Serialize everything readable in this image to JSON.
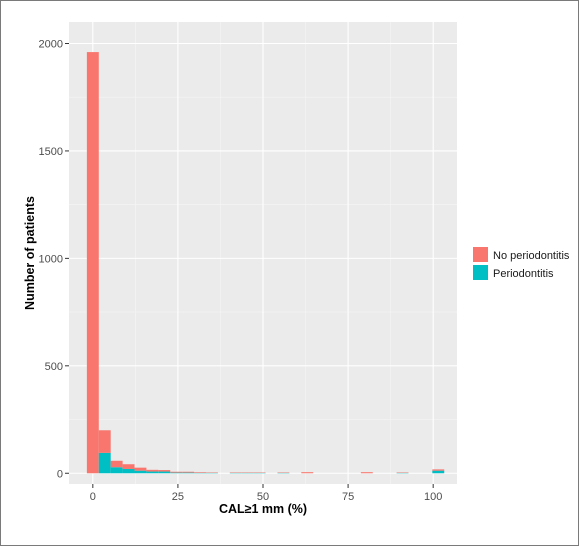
{
  "chart_data": {
    "type": "bar",
    "stacked": true,
    "xlabel": "CAL≥1 mm (%)",
    "ylabel": "Number of patients",
    "xlim": [
      -7,
      107
    ],
    "ylim": [
      -50,
      2100
    ],
    "bin_width": 3.5,
    "x_ticks": [
      0,
      25,
      50,
      75,
      100
    ],
    "y_ticks": [
      0,
      500,
      1000,
      1500,
      2000
    ],
    "grid": true,
    "legend_position": "right",
    "series": [
      {
        "name": "No periodontitis",
        "color": "#F8766D",
        "x": [
          0,
          3.5,
          7,
          10.5,
          14,
          17.5,
          21,
          24.5,
          28,
          31.5,
          35,
          42,
          45.5,
          49,
          56,
          63,
          80.5,
          91,
          101.5
        ],
        "values": [
          1960,
          105,
          30,
          22,
          14,
          8,
          7,
          4,
          4,
          3,
          2,
          2,
          2,
          2,
          2,
          5,
          5,
          2,
          6
        ]
      },
      {
        "name": "Periodontitis",
        "color": "#00BFC4",
        "x": [
          0,
          3.5,
          7,
          10.5,
          14,
          17.5,
          21,
          24.5,
          28,
          31.5,
          35,
          42,
          45.5,
          49,
          56,
          63,
          80.5,
          91,
          101.5
        ],
        "values": [
          0,
          95,
          28,
          20,
          12,
          8,
          8,
          3,
          3,
          2,
          2,
          2,
          2,
          2,
          2,
          0,
          0,
          2,
          12
        ]
      }
    ]
  }
}
